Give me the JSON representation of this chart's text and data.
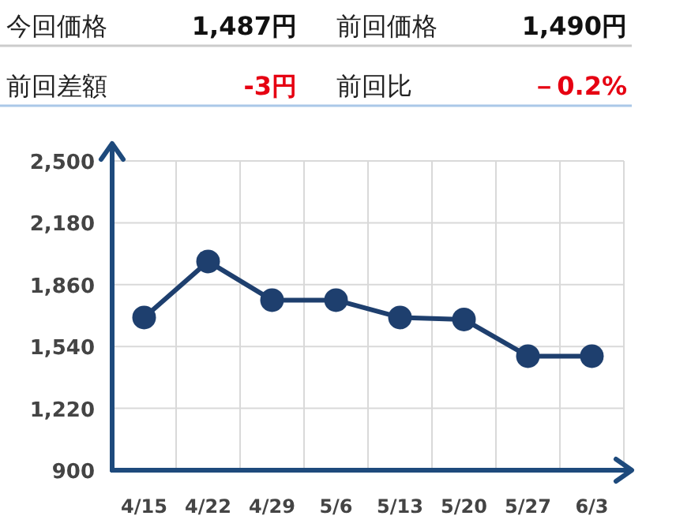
{
  "chart_data": [
    {
      "type": "other",
      "annotations": [
        "今回価格",
        "1,487円",
        "前回価格",
        "1,490円",
        "前回差額",
        "-3円",
        "前回比",
        "－0.2%"
      ],
      "colors": [
        "#222222",
        "#111111",
        "#222222",
        "#111111",
        "#222222",
        "#e60012",
        "#222222",
        "#e60012"
      ]
    },
    {
      "type": "line",
      "categories": [
        "4/15",
        "4/22",
        "4/29",
        "5/6",
        "5/13",
        "5/20",
        "5/27",
        "6/3"
      ],
      "series": [
        {
          "color": "#1e3f6e",
          "values": [
            1690,
            1980,
            1780,
            1780,
            1690,
            1680,
            1490,
            1490
          ]
        }
      ],
      "ylim": [
        900,
        2500
      ],
      "yticks": [
        {
          "value": 900,
          "label": "900"
        },
        {
          "value": 1220,
          "label": "1,220"
        },
        {
          "value": 1540,
          "label": "1,540"
        },
        {
          "value": 1860,
          "label": "1,860"
        },
        {
          "value": 2180,
          "label": "2,180"
        },
        {
          "value": 2500,
          "label": "2,500"
        }
      ],
      "grid": true,
      "marker": "circle",
      "line_style": "solid"
    }
  ]
}
